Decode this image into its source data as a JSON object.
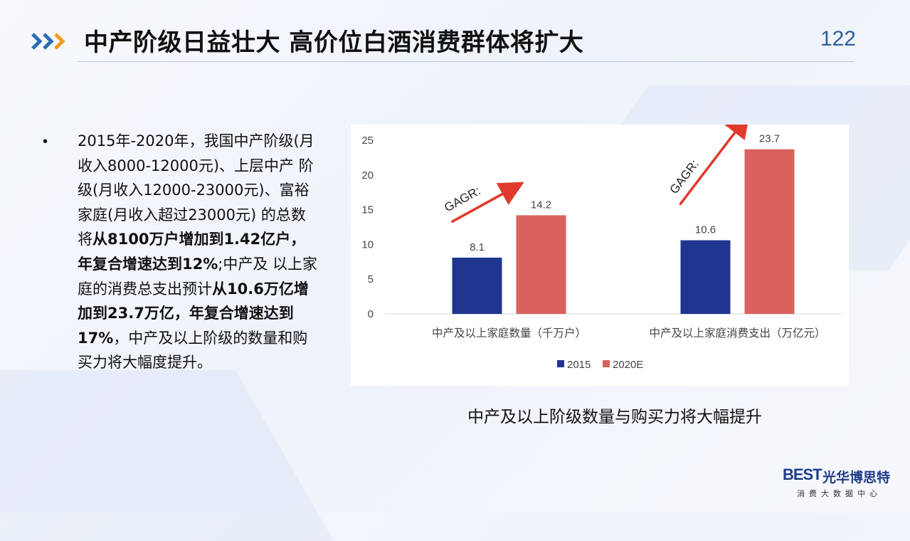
{
  "header": {
    "title": "中产阶级日益壮大 高价位白酒消费群体将扩大",
    "page_number": "122"
  },
  "bullet": {
    "dot": "•",
    "segments": [
      {
        "text": "2015年-2020年，我国中产阶级(月收入8000-12000元)、上层中产 阶级(月收入12000-23000元)、富裕家庭(月收入超过23000元) 的总数将",
        "bold": false
      },
      {
        "text": "从8100万户增加到1.42亿户，年复合增速达到12%",
        "bold": true
      },
      {
        "text": ";中产及 以上家庭的消费总支出预计",
        "bold": false
      },
      {
        "text": "从10.6万亿增加到23.7万亿，年复合增速达到17%",
        "bold": true
      },
      {
        "text": "，中产及以上阶级的数量和购买力将大幅度提升。",
        "bold": false
      }
    ]
  },
  "chart_data": {
    "type": "bar",
    "categories": [
      "中产及以上家庭数量（千万户）",
      "中产及以上家庭消费支出（万亿元）"
    ],
    "series": [
      {
        "name": "2015",
        "values": [
          8.1,
          10.6
        ],
        "color": "#1f3590"
      },
      {
        "name": "2020E",
        "values": [
          14.2,
          23.7
        ],
        "color": "#d9625e"
      }
    ],
    "ylim": [
      0,
      25
    ],
    "yticks": [
      "0",
      "5",
      "10",
      "15",
      "20",
      "25"
    ],
    "grid": false,
    "legend_position": "bottom",
    "annotations": [
      {
        "text": "GAGR:",
        "color": "#e03a2c"
      },
      {
        "text": "GAGR:",
        "color": "#e03a2c"
      }
    ]
  },
  "caption": "中产及以上阶级数量与购买力将大幅提升",
  "logo": {
    "mark": "BEST",
    "name": "光华博思特",
    "subtitle": "消费大数据中心",
    "color": "#1f3c88"
  },
  "colors": {
    "accent_orange": "#f39a1e",
    "accent_blue": "#2b6cb0",
    "page_number": "#2f5f9a"
  }
}
